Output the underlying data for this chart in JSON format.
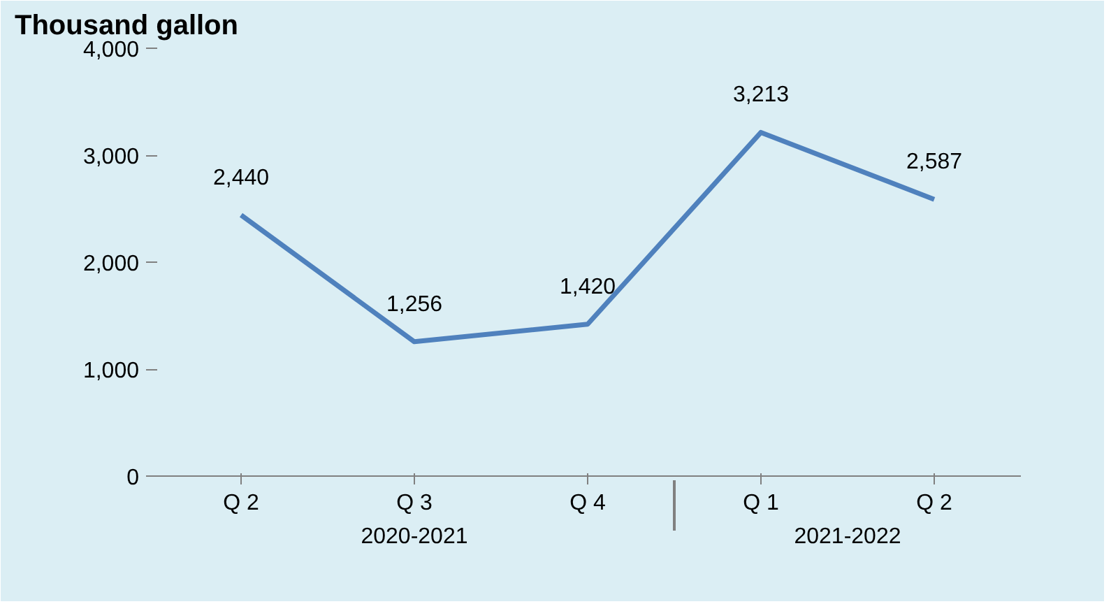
{
  "chart_data": {
    "type": "line",
    "title": "Thousand gallon",
    "categories": [
      "Q 2",
      "Q 3",
      "Q 4",
      "Q 1",
      "Q 2"
    ],
    "annotations": [
      "2020-2021",
      "2021-2022"
    ],
    "series": [
      {
        "color": "#4f81bd",
        "values": [
          2440,
          1256,
          1420,
          3213,
          2587
        ],
        "value_labels": [
          "2,440",
          "1,256",
          "1,420",
          "3,213",
          "2,587"
        ]
      }
    ],
    "ylim": [
      0,
      4000
    ],
    "yticks": [
      {
        "value": 0,
        "label": "0"
      },
      {
        "value": 1000,
        "label": "1,000"
      },
      {
        "value": 2000,
        "label": "2,000"
      },
      {
        "value": 3000,
        "label": "3,000"
      },
      {
        "value": 4000,
        "label": "4,000"
      }
    ],
    "grid": false,
    "marker": "none",
    "line_style": "solid"
  }
}
